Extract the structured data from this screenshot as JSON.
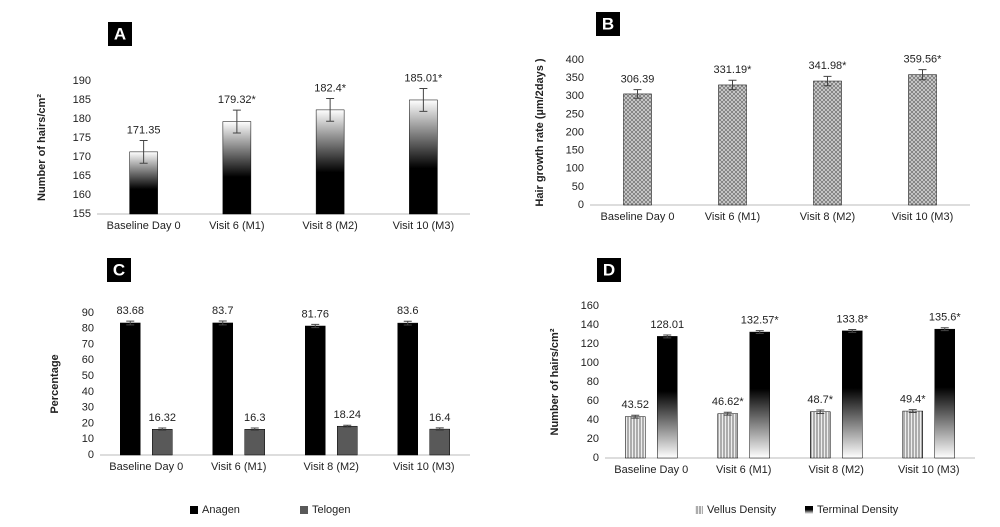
{
  "chart_data": [
    {
      "type": "bar",
      "panel": "A",
      "y_label": "Number of hairs/cm²",
      "categories": [
        "Baseline Day 0",
        "Visit 6 (M1)",
        "Visit 8 (M2)",
        "Visit 10 (M3)"
      ],
      "series": [
        {
          "color": "#000000",
          "values": [
            171.35,
            179.32,
            182.4,
            185.01
          ],
          "errors": [
            3,
            3,
            3,
            3
          ],
          "value_labels": [
            "171.35",
            "179.32*",
            "182.4*",
            "185.01*"
          ]
        }
      ],
      "ylim": [
        155,
        190
      ],
      "yticks": [
        155,
        160,
        165,
        170,
        175,
        180,
        185,
        190
      ]
    },
    {
      "type": "bar",
      "panel": "B",
      "y_label": "Hair growth rate (µm/2days )",
      "categories": [
        "Baseline Day 0",
        "Visit 6 (M1)",
        "Visit 8 (M2)",
        "Visit 10 (M3)"
      ],
      "series": [
        {
          "color": "#7f7f7f",
          "values": [
            306.39,
            331.19,
            341.98,
            359.56
          ],
          "errors": [
            12,
            13,
            13,
            14
          ],
          "value_labels": [
            "306.39",
            "331.19*",
            "341.98*",
            "359.56*"
          ]
        }
      ],
      "ylim": [
        0,
        400
      ],
      "yticks": [
        0,
        50,
        100,
        150,
        200,
        250,
        300,
        350,
        400
      ]
    },
    {
      "type": "bar",
      "panel": "C",
      "y_label": "Percentage",
      "categories": [
        "Baseline Day 0",
        "Visit 6 (M1)",
        "Visit 8 (M2)",
        "Visit 10 (M3)"
      ],
      "series": [
        {
          "name": "Anagen",
          "color": "#000000",
          "values": [
            83.68,
            83.7,
            81.76,
            83.6
          ],
          "errors": [
            1.2,
            1.2,
            1,
            1.2
          ],
          "value_labels": [
            "83.68",
            "83.7",
            "81.76",
            "83.6"
          ]
        },
        {
          "name": "Telogen",
          "color": "#595959",
          "values": [
            16.32,
            16.3,
            18.24,
            16.4
          ],
          "errors": [
            0.8,
            0.8,
            0.6,
            0.8
          ],
          "value_labels": [
            "16.32",
            "16.3",
            "18.24",
            "16.4"
          ]
        }
      ],
      "ylim": [
        0,
        90
      ],
      "yticks": [
        0,
        10,
        20,
        30,
        40,
        50,
        60,
        70,
        80,
        90
      ]
    },
    {
      "type": "bar",
      "panel": "D",
      "y_label": "Number of hairs/cm²",
      "categories": [
        "Baseline Day 0",
        "Visit 6 (M1)",
        "Visit 8 (M2)",
        "Visit 10 (M3)"
      ],
      "series": [
        {
          "name": "Vellus Density",
          "color": "#808080",
          "values": [
            43.52,
            46.62,
            48.7,
            49.4
          ],
          "errors": [
            1.5,
            1.5,
            1.8,
            1.5
          ],
          "value_labels": [
            "43.52",
            "46.62*",
            "48.7*",
            "49.4*"
          ]
        },
        {
          "name": "Terminal Density",
          "color": "#000000",
          "values": [
            128.01,
            132.57,
            133.8,
            135.6
          ],
          "errors": [
            1.5,
            1.5,
            1.5,
            1.5
          ],
          "value_labels": [
            "128.01",
            "132.57*",
            "133.8*",
            "135.6*"
          ]
        }
      ],
      "ylim": [
        0,
        160
      ],
      "yticks": [
        0,
        20,
        40,
        60,
        80,
        100,
        120,
        140,
        160
      ]
    }
  ]
}
